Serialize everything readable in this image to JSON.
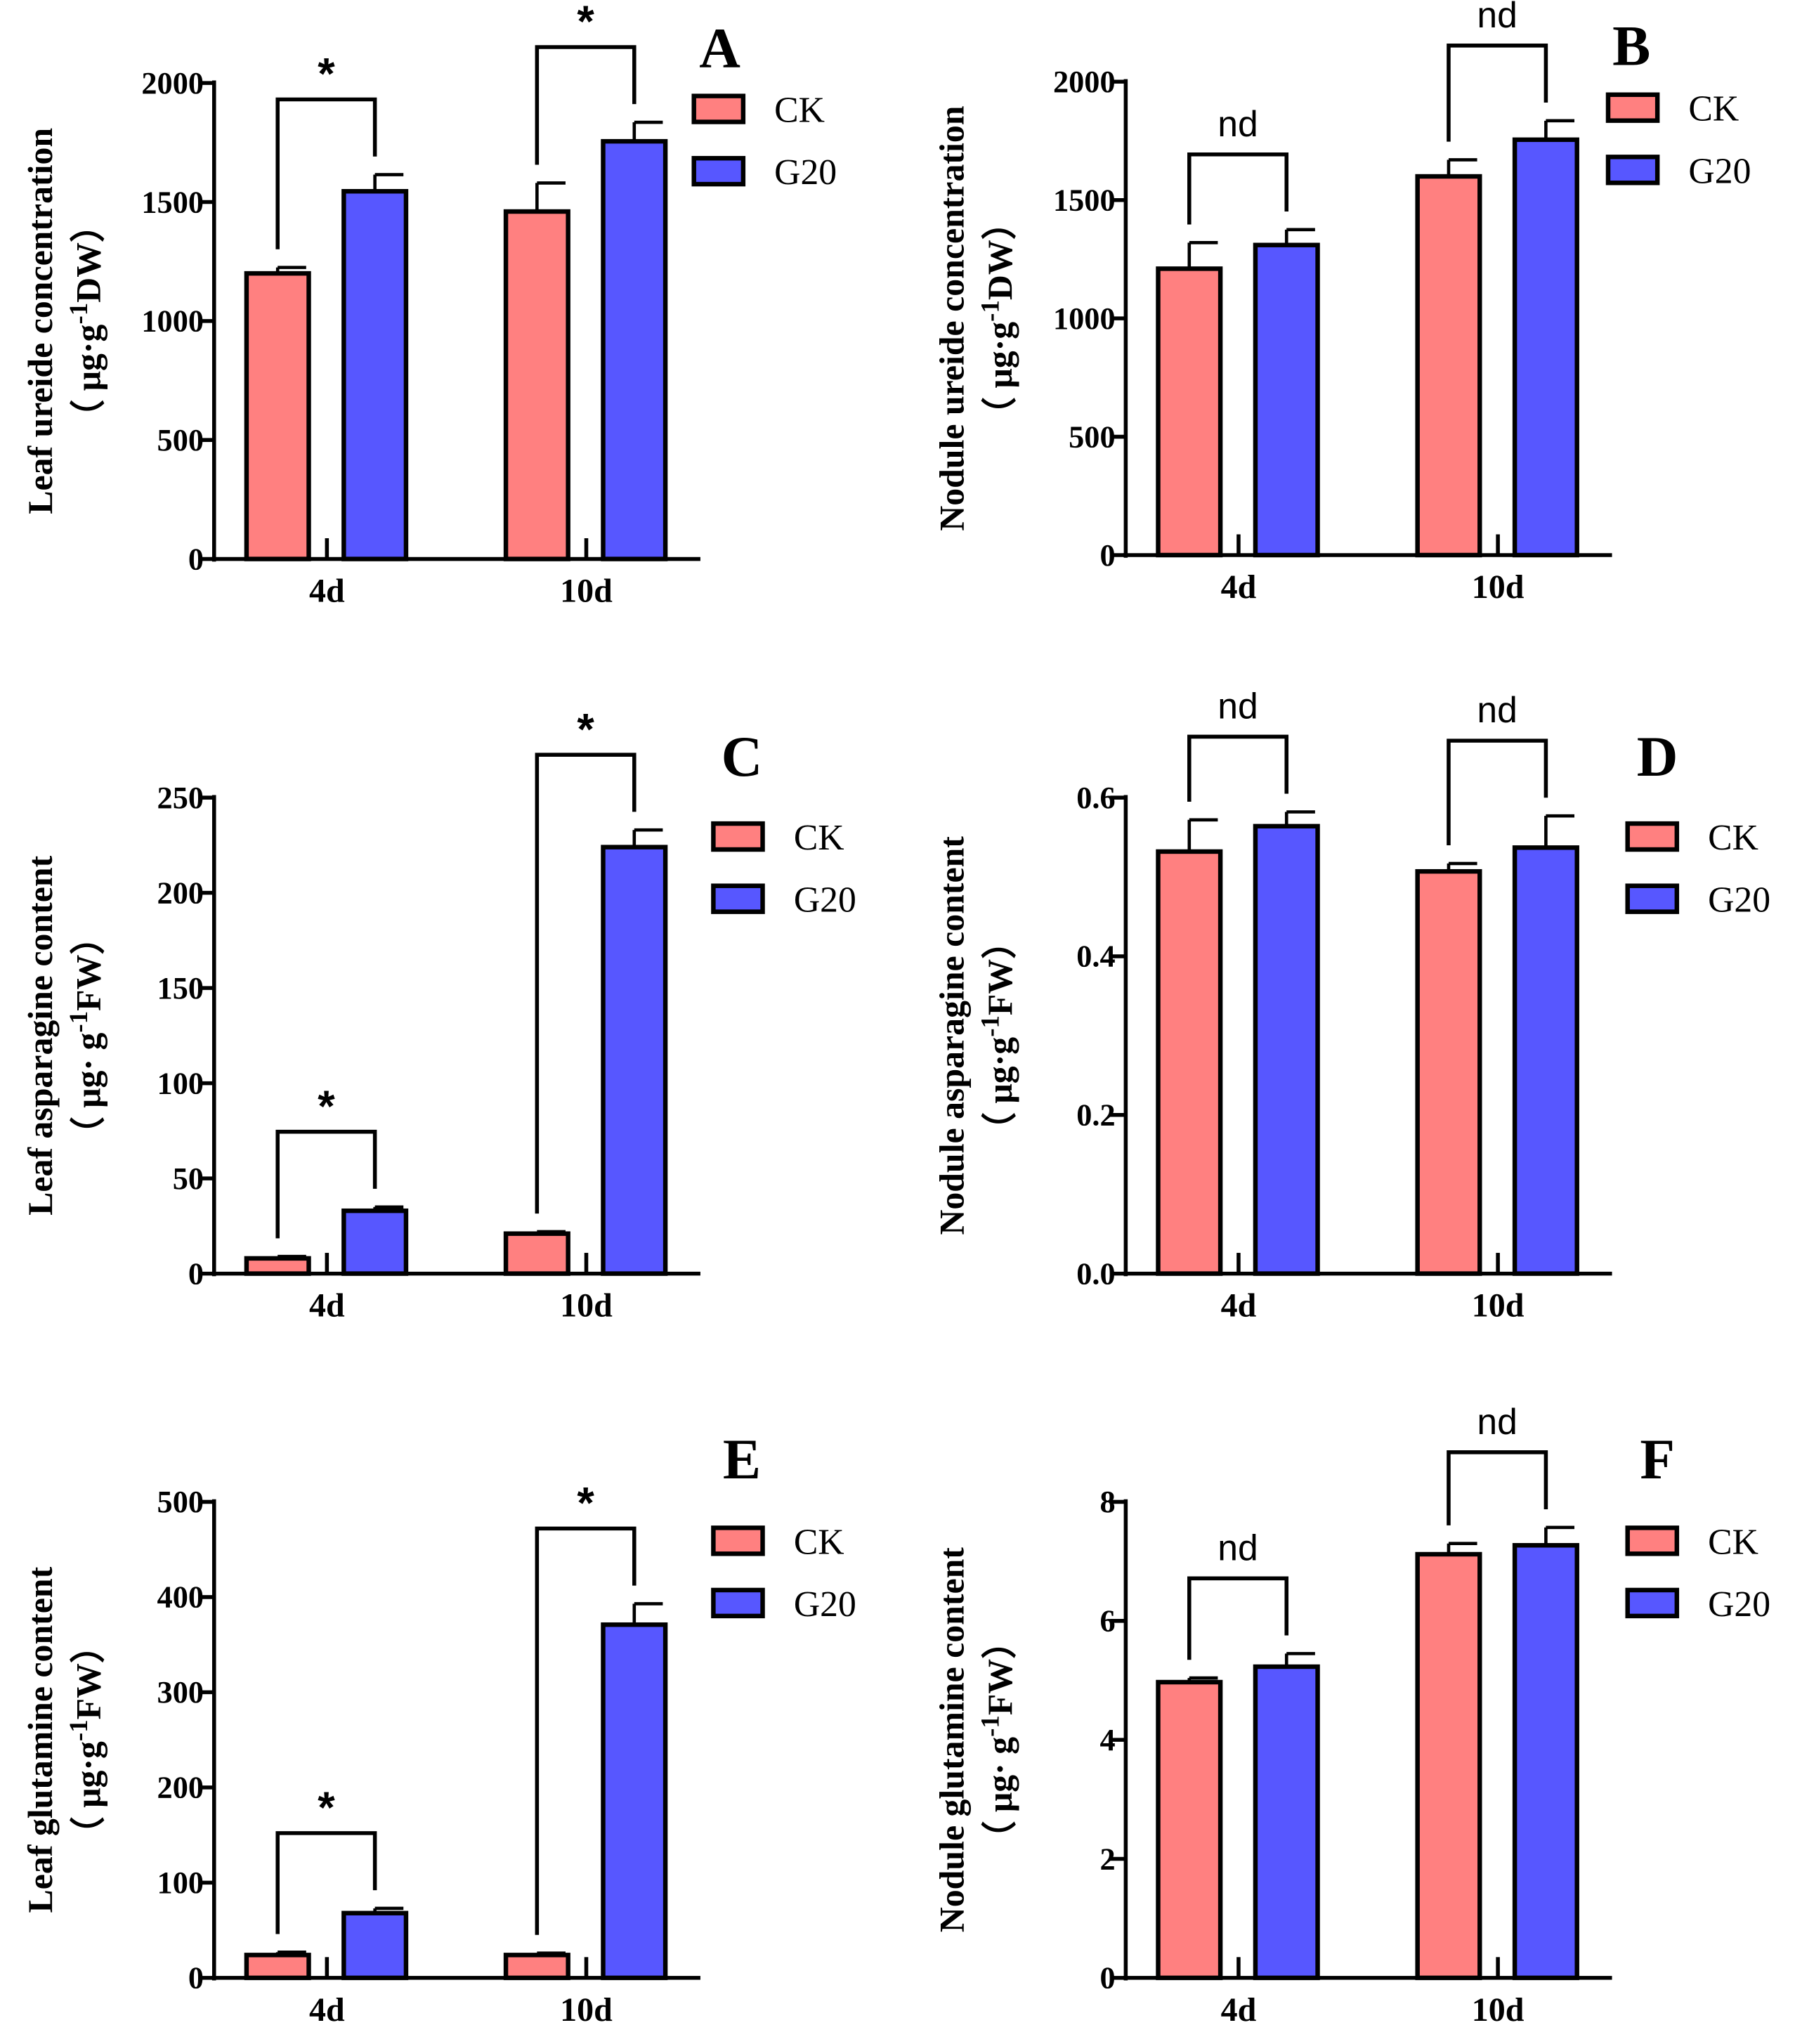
{
  "colors": {
    "CK": "#FF8080",
    "G20": "#5757FF",
    "axis": "#000000"
  },
  "chart_data": [
    {
      "type": "bar",
      "panel": "A",
      "ylabel": "Leaf ureide concentration",
      "yunit": {
        "pre": "（ μg·g",
        "sup": "-1",
        "post": "DW）"
      },
      "categories": [
        "4d",
        "10d"
      ],
      "ylim": [
        0,
        2000
      ],
      "yticks": [
        0,
        500,
        1000,
        1500,
        2000
      ],
      "tick_labels": [
        "0",
        "500",
        "1000",
        "1500",
        "2000"
      ],
      "series": [
        {
          "name": "CK",
          "values": [
            1200,
            1460
          ],
          "errors": [
            25,
            120
          ]
        },
        {
          "name": "G20",
          "values": [
            1545,
            1755
          ],
          "errors": [
            70,
            80
          ]
        }
      ],
      "significance": [
        "*",
        "*"
      ],
      "legend": [
        "CK",
        "G20"
      ],
      "legend_position": "top-right"
    },
    {
      "type": "bar",
      "panel": "B",
      "ylabel": "Nodule ureide concentration",
      "yunit": {
        "pre": "（ μg·g",
        "sup": "-1",
        "post": "DW）"
      },
      "categories": [
        "4d",
        "10d"
      ],
      "ylim": [
        0,
        2000
      ],
      "yticks": [
        0,
        500,
        1000,
        1500,
        2000
      ],
      "tick_labels": [
        "0",
        "500",
        "1000",
        "1500",
        "2000"
      ],
      "series": [
        {
          "name": "CK",
          "values": [
            1210,
            1600
          ],
          "errors": [
            110,
            70
          ]
        },
        {
          "name": "G20",
          "values": [
            1310,
            1755
          ],
          "errors": [
            65,
            80
          ]
        }
      ],
      "significance": [
        "nd",
        "nd"
      ],
      "legend": [
        "CK",
        "G20"
      ],
      "legend_position": "top-right"
    },
    {
      "type": "bar",
      "panel": "C",
      "ylabel": "Leaf asparagine content",
      "yunit": {
        "pre": "（ μg· g",
        "sup": "-1",
        "post": "FW）"
      },
      "categories": [
        "4d",
        "10d"
      ],
      "ylim": [
        0,
        250
      ],
      "yticks": [
        0,
        50,
        100,
        150,
        200,
        250
      ],
      "tick_labels": [
        "0",
        "50",
        "100",
        "150",
        "200",
        "250"
      ],
      "series": [
        {
          "name": "CK",
          "values": [
            8,
            21
          ],
          "errors": [
            1,
            1
          ]
        },
        {
          "name": "G20",
          "values": [
            33,
            224
          ],
          "errors": [
            2,
            9
          ]
        }
      ],
      "significance": [
        "*",
        "*"
      ],
      "legend": [
        "CK",
        "G20"
      ],
      "legend_position": "top-right"
    },
    {
      "type": "bar",
      "panel": "D",
      "ylabel": "Nodule asparagine content",
      "yunit": {
        "pre": "（ μg·g",
        "sup": "-1",
        "post": "FW）"
      },
      "categories": [
        "4d",
        "10d"
      ],
      "ylim": [
        0,
        0.6
      ],
      "yticks": [
        0,
        0.2,
        0.4,
        0.6
      ],
      "tick_labels": [
        "0.0",
        "0.2",
        "0.4",
        "0.6"
      ],
      "series": [
        {
          "name": "CK",
          "values": [
            0.532,
            0.507
          ],
          "errors": [
            0.04,
            0.01
          ]
        },
        {
          "name": "G20",
          "values": [
            0.564,
            0.537
          ],
          "errors": [
            0.018,
            0.04
          ]
        }
      ],
      "significance": [
        "nd",
        "nd"
      ],
      "legend": [
        "CK",
        "G20"
      ],
      "legend_position": "top-right"
    },
    {
      "type": "bar",
      "panel": "E",
      "ylabel": "Leaf glutamine content",
      "yunit": {
        "pre": "（ μg·g",
        "sup": "-1",
        "post": "FW）"
      },
      "categories": [
        "4d",
        "10d"
      ],
      "ylim": [
        0,
        500
      ],
      "yticks": [
        0,
        100,
        200,
        300,
        400,
        500
      ],
      "tick_labels": [
        "0",
        "100",
        "200",
        "300",
        "400",
        "500"
      ],
      "series": [
        {
          "name": "CK",
          "values": [
            24,
            24
          ],
          "errors": [
            3,
            2
          ]
        },
        {
          "name": "G20",
          "values": [
            68,
            371
          ],
          "errors": [
            5,
            22
          ]
        }
      ],
      "significance": [
        "*",
        "*"
      ],
      "legend": [
        "CK",
        "G20"
      ],
      "legend_position": "top-right"
    },
    {
      "type": "bar",
      "panel": "F",
      "ylabel": "Nodule glutamine content",
      "yunit": {
        "pre": "（ μg· g",
        "sup": "-1",
        "post": "FW）"
      },
      "categories": [
        "4d",
        "10d"
      ],
      "ylim": [
        0,
        8
      ],
      "yticks": [
        0,
        2,
        4,
        6,
        8
      ],
      "tick_labels": [
        "0",
        "2",
        "4",
        "6",
        "8"
      ],
      "series": [
        {
          "name": "CK",
          "values": [
            4.97,
            7.12
          ],
          "errors": [
            0.07,
            0.18
          ]
        },
        {
          "name": "G20",
          "values": [
            5.23,
            7.27
          ],
          "errors": [
            0.22,
            0.3
          ]
        }
      ],
      "significance": [
        "nd",
        "nd"
      ],
      "legend": [
        "CK",
        "G20"
      ],
      "legend_position": "top-right"
    }
  ]
}
